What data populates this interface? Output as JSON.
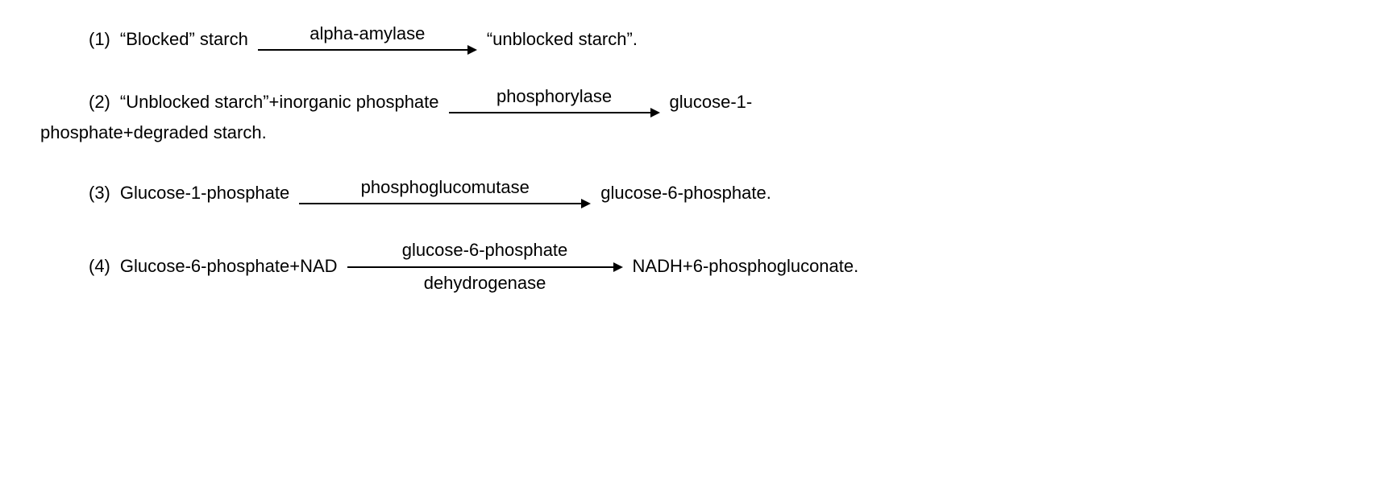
{
  "reactions": {
    "r1": {
      "num": "(1)",
      "reactant": "“Blocked”  starch",
      "enzyme": "alpha-amylase",
      "product": "“unblocked  starch”.",
      "arrow_width": 260
    },
    "r2": {
      "num": "(2)",
      "reactant": "“Unblocked  starch”+inorganic  phosphate",
      "enzyme": "phosphorylase",
      "product": "glucose-1-",
      "cont": "phosphate+degraded  starch.",
      "arrow_width": 250
    },
    "r3": {
      "num": "(3)",
      "reactant": "Glucose-1-phosphate",
      "enzyme": "phosphoglucomutase",
      "product": "glucose-6-phosphate.",
      "arrow_width": 350
    },
    "r4": {
      "num": "(4)",
      "reactant": "Glucose-6-phosphate+NAD",
      "enzyme_top": "glucose-6-phosphate",
      "enzyme_bottom": "dehydrogenase",
      "product": "NADH+6-phosphogluconate.",
      "arrow_width": 330
    }
  },
  "style": {
    "font_size": 22,
    "font_family": "Arial, Helvetica, sans-serif",
    "text_color": "#000000",
    "background_color": "#ffffff",
    "arrow_color": "#000000",
    "arrow_thickness": 2
  }
}
